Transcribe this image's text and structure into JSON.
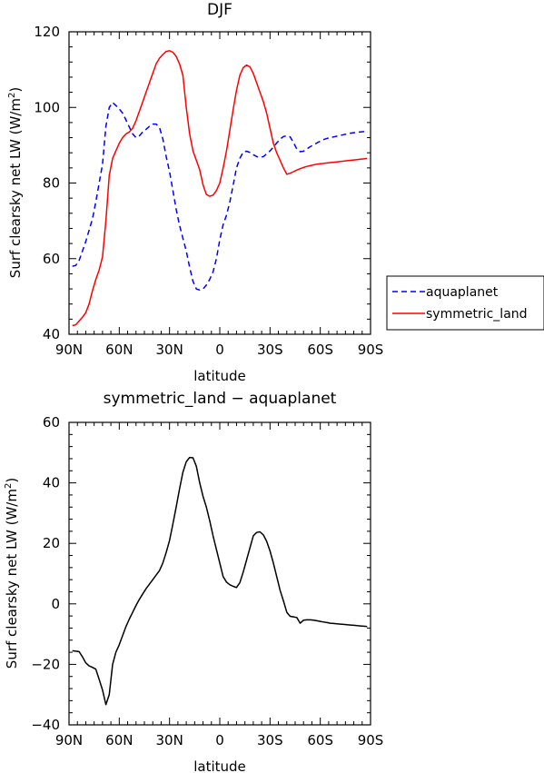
{
  "chart_data": [
    {
      "type": "line",
      "title": "DJF",
      "xlabel": "latitude",
      "ylabel": "Surf clearsky net LW (W/m",
      "ylabel_sup": "2",
      "ylabel_close": ")",
      "xlim": [
        90,
        -90
      ],
      "ylim": [
        40,
        120
      ],
      "xticks": [
        90,
        60,
        30,
        0,
        -30,
        -60,
        -90
      ],
      "xtick_labels": [
        "90N",
        "60N",
        "30N",
        "0",
        "30S",
        "60S",
        "90S"
      ],
      "yticks": [
        40,
        60,
        80,
        100,
        120
      ],
      "ytick_labels": [
        "40",
        "60",
        "80",
        "100",
        "120"
      ],
      "legend_position": "right",
      "series": [
        {
          "name": "aquaplanet",
          "color": "#0000ff",
          "dash": "dashed",
          "x": [
            88,
            86,
            84,
            82,
            80,
            78,
            76,
            74,
            72,
            70,
            68,
            66,
            64,
            62,
            60,
            58,
            56,
            54,
            52,
            50,
            48,
            46,
            44,
            42,
            40,
            38,
            36,
            34,
            32,
            30,
            28,
            26,
            24,
            22,
            20,
            18,
            16,
            14,
            12,
            10,
            8,
            6,
            4,
            2,
            0,
            -2,
            -4,
            -6,
            -8,
            -10,
            -12,
            -14,
            -16,
            -18,
            -20,
            -22,
            -24,
            -26,
            -28,
            -30,
            -32,
            -34,
            -36,
            -38,
            -40,
            -42,
            -44,
            -46,
            -48,
            -50,
            -52,
            -54,
            -56,
            -58,
            -60,
            -62,
            -64,
            -66,
            -68,
            -70,
            -72,
            -74,
            -76,
            -78,
            -80,
            -82,
            -84,
            -86,
            -88
          ],
          "y": [
            58,
            58.2,
            59.5,
            62,
            64.5,
            67.5,
            70.5,
            75,
            80,
            85,
            95,
            100,
            101.3,
            100.5,
            99.6,
            98.5,
            96.7,
            94.8,
            93,
            92,
            92.5,
            93.5,
            94.2,
            95,
            95.6,
            95.6,
            94.7,
            91.7,
            87,
            83,
            78,
            73,
            68.8,
            65.4,
            62,
            57.7,
            54,
            52,
            51.7,
            52,
            53,
            54.5,
            56.5,
            60,
            65,
            69,
            71.5,
            75,
            79.5,
            84,
            86.5,
            88.2,
            88.4,
            88.1,
            87.5,
            87,
            86.8,
            87,
            87.7,
            88.5,
            89.5,
            90.6,
            91.6,
            92.3,
            92.5,
            92.2,
            90.7,
            89,
            88.3,
            88.4,
            89,
            89.6,
            90.1,
            90.6,
            91.1,
            91.5,
            91.8,
            92,
            92.2,
            92.4,
            92.6,
            92.8,
            93,
            93.2,
            93.3,
            93.4,
            93.5,
            93.6,
            93.7
          ]
        },
        {
          "name": "symmetric_land",
          "color": "#ff0000",
          "dash": "solid",
          "x": [
            88,
            86,
            84,
            82,
            80,
            78,
            76,
            74,
            72,
            70,
            68,
            66,
            64,
            62,
            60,
            58,
            56,
            54,
            52,
            50,
            48,
            46,
            44,
            42,
            40,
            38,
            36,
            34,
            32,
            30,
            28,
            26,
            24,
            22,
            20,
            18,
            16,
            14,
            12,
            10,
            8,
            6,
            4,
            2,
            0,
            -2,
            -4,
            -6,
            -8,
            -10,
            -12,
            -14,
            -16,
            -18,
            -20,
            -22,
            -24,
            -26,
            -28,
            -30,
            -32,
            -34,
            -36,
            -38,
            -40,
            -42,
            -44,
            -46,
            -48,
            -50,
            -52,
            -54,
            -56,
            -58,
            -60,
            -62,
            -64,
            -66,
            -68,
            -70,
            -72,
            -74,
            -76,
            -78,
            -80,
            -82,
            -84,
            -86,
            -88
          ],
          "y": [
            42.3,
            42.5,
            43.5,
            44.5,
            45.7,
            48,
            51.5,
            54.5,
            57,
            60.5,
            70,
            82,
            86.5,
            88.5,
            90.5,
            92,
            93,
            93.5,
            94.5,
            96.5,
            99,
            101.5,
            104,
            106.5,
            109,
            111.5,
            113,
            114,
            114.8,
            115,
            114.6,
            113.5,
            111.5,
            108.5,
            100,
            93,
            88.5,
            86,
            83.5,
            79.5,
            77,
            76.5,
            76.8,
            78,
            80,
            84,
            88.5,
            94,
            99.5,
            104.5,
            108.5,
            110.5,
            111.2,
            110.7,
            109,
            106.5,
            104,
            101.5,
            98.5,
            94.5,
            90.5,
            88,
            86,
            84,
            82.3,
            82.6,
            83,
            83.4,
            83.8,
            84.1,
            84.4,
            84.6,
            84.8,
            85,
            85.1,
            85.2,
            85.3,
            85.4,
            85.5,
            85.6,
            85.7,
            85.8,
            85.9,
            86,
            86.1,
            86.2,
            86.3,
            86.4,
            86.5
          ]
        }
      ]
    },
    {
      "type": "line",
      "title": "symmetric_land − aquaplanet",
      "xlabel": "latitude",
      "ylabel": "Surf clearsky net LW (W/m",
      "ylabel_sup": "2",
      "ylabel_close": ")",
      "xlim": [
        90,
        -90
      ],
      "ylim": [
        -40,
        60
      ],
      "xticks": [
        90,
        60,
        30,
        0,
        -30,
        -60,
        -90
      ],
      "xtick_labels": [
        "90N",
        "60N",
        "30N",
        "0",
        "30S",
        "60S",
        "90S"
      ],
      "yticks": [
        -40,
        -20,
        0,
        20,
        40,
        60
      ],
      "ytick_labels": [
        "−40",
        "−20",
        "0",
        "20",
        "40",
        "60"
      ],
      "series": [
        {
          "name": "",
          "color": "#000000",
          "dash": "solid",
          "x": [
            88,
            84,
            82,
            80,
            78,
            76,
            74,
            72,
            70,
            68,
            66,
            64,
            62,
            60,
            58,
            56,
            54,
            52,
            50,
            48,
            46,
            44,
            42,
            40,
            38,
            36,
            34,
            32,
            30,
            28,
            26,
            24,
            22,
            20,
            18,
            16,
            14,
            12,
            10,
            8,
            6,
            4,
            2,
            0,
            -2,
            -4,
            -6,
            -8,
            -10,
            -12,
            -14,
            -16,
            -18,
            -20,
            -22,
            -24,
            -26,
            -28,
            -30,
            -32,
            -34,
            -36,
            -38,
            -40,
            -42,
            -44,
            -46,
            -48,
            -50,
            -52,
            -54,
            -56,
            -58,
            -60,
            -62,
            -64,
            -66,
            -68,
            -70,
            -72,
            -74,
            -76,
            -78,
            -80,
            -82,
            -84,
            -86,
            -88
          ],
          "y": [
            -15.5,
            -15.8,
            -17.5,
            -19.5,
            -20.5,
            -21,
            -21.6,
            -25,
            -28.5,
            -33.3,
            -30,
            -20,
            -16,
            -13.5,
            -10.5,
            -7.5,
            -5,
            -2.8,
            -0.5,
            1.5,
            3.3,
            5,
            6.5,
            8,
            9.5,
            11,
            13.5,
            17,
            21,
            26.5,
            32,
            38,
            43.5,
            47,
            48.4,
            48.3,
            45.5,
            40,
            35.5,
            32,
            27.5,
            22.5,
            18,
            13.5,
            9,
            7.2,
            6.3,
            5.8,
            5.4,
            7,
            10.5,
            14.5,
            18.5,
            22.5,
            23.6,
            23.8,
            22.8,
            20.7,
            17.5,
            13.5,
            9,
            4.5,
            1,
            -2.8,
            -4.1,
            -4.3,
            -4.5,
            -6.4,
            -5.4,
            -5.3,
            -5.3,
            -5.4,
            -5.6,
            -5.8,
            -6,
            -6.2,
            -6.4,
            -6.5,
            -6.6,
            -6.7,
            -6.8,
            -6.9,
            -7,
            -7.1,
            -7.2,
            -7.3,
            -7.4,
            -7.5
          ]
        }
      ]
    }
  ]
}
